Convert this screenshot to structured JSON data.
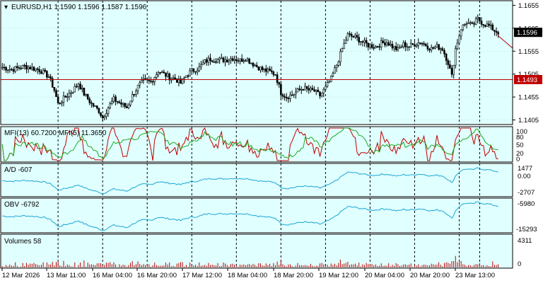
{
  "colors": {
    "background": "#e0ffff",
    "outer": "#ffffff",
    "frame": "#000000",
    "candle": "#000000",
    "bid_line": "#c00000",
    "mfi13": "#c00000",
    "mfi5": "#1faa1f",
    "ad": "#1aa6d6",
    "obv": "#1aa6d6",
    "volume": "#c00000",
    "grid": "#000000",
    "badge_text": "#ffffff"
  },
  "main": {
    "title": "EURUSD,H1  1.1590 1.1596 1.1587 1.1596",
    "price_labels": [
      "1.1655",
      "1.1605",
      "1.1555",
      "1.1505",
      "1.1455",
      "1.1405"
    ],
    "current_price": "1.1596",
    "current_price_value": 1.1596,
    "line_price": "1.1493",
    "line_price_value": 1.1493,
    "ylim": [
      1.1395,
      1.1665
    ]
  },
  "indicators": {
    "mfi": {
      "title": "MFI(13) 60.7200  MFI(5) 11.3650",
      "levels": [
        "100",
        "80",
        "50",
        "20",
        "0"
      ]
    },
    "ad": {
      "title": "A/D -607",
      "levels": [
        "1477",
        "0.00",
        "-2707"
      ]
    },
    "obv": {
      "title": "OBV -6792",
      "levels": [
        "-5980",
        "-15293"
      ]
    },
    "volumes": {
      "title": "Volumes 58",
      "levels": [
        "4311",
        "0"
      ]
    }
  },
  "time_labels": [
    "12 Mar 2026",
    "13 Mar 11:00",
    "16 Mar 04:00",
    "16 Mar 20:00",
    "17 Mar 12:00",
    "18 Mar 04:00",
    "18 Mar 20:00",
    "19 Mar 12:00",
    "20 Mar 04:00",
    "20 Mar 20:00",
    "23 Mar 13:00"
  ],
  "chart_data": {
    "type": "candlestick",
    "symbol": "EURUSD",
    "timeframe": "H1",
    "ohlc_last": {
      "open": 1.159,
      "high": 1.1596,
      "low": 1.1587,
      "close": 1.1596
    },
    "close_path": [
      [
        0,
        1.152
      ],
      [
        5,
        1.1515
      ],
      [
        12,
        1.1522
      ],
      [
        20,
        1.1514
      ],
      [
        25,
        1.15
      ],
      [
        28,
        1.147
      ],
      [
        30,
        1.144
      ],
      [
        34,
        1.1455
      ],
      [
        38,
        1.147
      ],
      [
        41,
        1.1485
      ],
      [
        44,
        1.1462
      ],
      [
        48,
        1.144
      ],
      [
        52,
        1.1425
      ],
      [
        54,
        1.141
      ],
      [
        57,
        1.1432
      ],
      [
        60,
        1.145
      ],
      [
        64,
        1.144
      ],
      [
        67,
        1.1432
      ],
      [
        70,
        1.1458
      ],
      [
        73,
        1.1478
      ],
      [
        76,
        1.149
      ],
      [
        80,
        1.1488
      ],
      [
        84,
        1.1512
      ],
      [
        87,
        1.1505
      ],
      [
        90,
        1.1498
      ],
      [
        93,
        1.1495
      ],
      [
        96,
        1.1485
      ],
      [
        99,
        1.1502
      ],
      [
        102,
        1.1512
      ],
      [
        106,
        1.1518
      ],
      [
        109,
        1.1532
      ],
      [
        112,
        1.1538
      ],
      [
        116,
        1.1536
      ],
      [
        120,
        1.1536
      ],
      [
        124,
        1.154
      ],
      [
        128,
        1.1535
      ],
      [
        131,
        1.154
      ],
      [
        134,
        1.153
      ],
      [
        137,
        1.1522
      ],
      [
        140,
        1.1515
      ],
      [
        144,
        1.151
      ],
      [
        147,
        1.1505
      ],
      [
        150,
        1.1465
      ],
      [
        153,
        1.1455
      ],
      [
        156,
        1.146
      ],
      [
        159,
        1.1468
      ],
      [
        162,
        1.1475
      ],
      [
        165,
        1.147
      ],
      [
        168,
        1.1468
      ],
      [
        171,
        1.1458
      ],
      [
        174,
        1.1475
      ],
      [
        177,
        1.1495
      ],
      [
        180,
        1.1525
      ],
      [
        183,
        1.156
      ],
      [
        186,
        1.159
      ],
      [
        190,
        1.1585
      ],
      [
        194,
        1.1575
      ],
      [
        197,
        1.1568
      ],
      [
        201,
        1.1565
      ],
      [
        204,
        1.1572
      ],
      [
        207,
        1.1575
      ],
      [
        210,
        1.1565
      ],
      [
        213,
        1.1558
      ],
      [
        216,
        1.157
      ],
      [
        219,
        1.1565
      ],
      [
        222,
        1.157
      ],
      [
        225,
        1.1575
      ],
      [
        228,
        1.1568
      ],
      [
        231,
        1.156
      ],
      [
        234,
        1.1565
      ],
      [
        237,
        1.156
      ],
      [
        240,
        1.153
      ],
      [
        242,
        1.15
      ],
      [
        244,
        1.156
      ],
      [
        247,
        1.1605
      ],
      [
        250,
        1.1618
      ],
      [
        253,
        1.161
      ],
      [
        256,
        1.1625
      ],
      [
        259,
        1.1615
      ],
      [
        262,
        1.161
      ],
      [
        265,
        1.16
      ],
      [
        267,
        1.1596
      ]
    ],
    "indicators": [
      "MFI(13)",
      "MFI(5)",
      "A/D",
      "OBV",
      "Volumes"
    ]
  }
}
